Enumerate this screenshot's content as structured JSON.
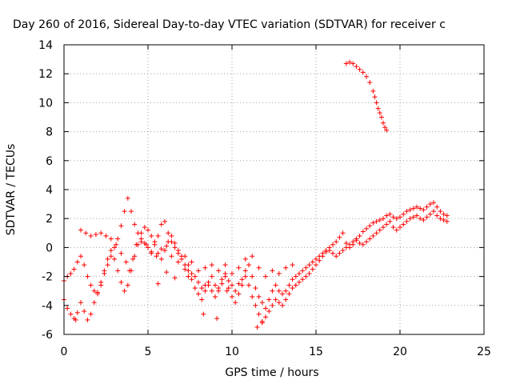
{
  "chart_data": {
    "type": "scatter",
    "title": "Day 260 of 2016, Sidereal Day-to-day VTEC variation (SDTVAR) for receiver c",
    "xlabel": "GPS time / hours",
    "ylabel": "SDTVAR / TECUs",
    "xlim": [
      0,
      25
    ],
    "ylim": [
      -6,
      14
    ],
    "xticks": [
      "0",
      "5",
      "10",
      "15",
      "20",
      "25"
    ],
    "yticks": [
      "-6",
      "-4",
      "-2",
      "0",
      "2",
      "4",
      "6",
      "8",
      "10",
      "12",
      "14"
    ],
    "grid": true,
    "marker": "+",
    "color": "#ff0000",
    "series": [
      {
        "points": [
          [
            0.0,
            -2.3
          ],
          [
            0.2,
            -2.0
          ],
          [
            0.4,
            -1.8
          ],
          [
            0.6,
            -1.5
          ],
          [
            0.8,
            -1.0
          ],
          [
            1.0,
            -0.6
          ],
          [
            1.2,
            -1.2
          ],
          [
            1.4,
            -2.0
          ],
          [
            1.6,
            -2.6
          ],
          [
            1.8,
            -3.0
          ],
          [
            2.0,
            -3.1
          ],
          [
            2.2,
            -2.6
          ],
          [
            2.4,
            -1.8
          ],
          [
            2.6,
            -1.2
          ],
          [
            2.8,
            -0.6
          ],
          [
            3.0,
            0.0
          ],
          [
            3.2,
            0.6
          ],
          [
            3.4,
            1.5
          ],
          [
            3.6,
            2.5
          ],
          [
            3.8,
            3.4
          ],
          [
            4.0,
            2.5
          ],
          [
            4.2,
            1.6
          ],
          [
            4.4,
            1.0
          ],
          [
            4.6,
            0.6
          ],
          [
            4.8,
            0.3
          ],
          [
            5.0,
            0.0
          ],
          [
            5.2,
            -0.3
          ],
          [
            5.4,
            0.2
          ],
          [
            5.6,
            0.8
          ],
          [
            5.8,
            1.6
          ],
          [
            6.0,
            1.8
          ],
          [
            6.2,
            1.0
          ],
          [
            6.4,
            0.4
          ],
          [
            6.6,
            0.0
          ],
          [
            6.8,
            -0.4
          ],
          [
            7.0,
            -0.8
          ],
          [
            7.2,
            -0.6
          ],
          [
            7.4,
            -1.2
          ],
          [
            7.6,
            -1.8
          ],
          [
            7.8,
            -2.0
          ],
          [
            8.0,
            -2.4
          ],
          [
            8.2,
            -2.8
          ],
          [
            8.4,
            -2.6
          ],
          [
            8.6,
            -2.4
          ],
          [
            8.8,
            -2.0
          ],
          [
            9.0,
            -2.6
          ],
          [
            9.2,
            -3.0
          ],
          [
            9.4,
            -2.5
          ],
          [
            9.6,
            -2.0
          ],
          [
            9.8,
            -2.3
          ],
          [
            10.0,
            -2.6
          ],
          [
            10.2,
            -3.0
          ],
          [
            10.4,
            -2.5
          ],
          [
            10.6,
            -2.2
          ],
          [
            10.8,
            -1.6
          ],
          [
            11.0,
            -1.2
          ],
          [
            11.2,
            -2.0
          ],
          [
            11.4,
            -2.8
          ],
          [
            11.6,
            -3.4
          ],
          [
            11.8,
            -3.8
          ],
          [
            12.0,
            -4.2
          ],
          [
            12.2,
            -3.6
          ],
          [
            12.4,
            -3.0
          ],
          [
            12.6,
            -2.6
          ],
          [
            12.8,
            -3.0
          ],
          [
            13.0,
            -3.2
          ],
          [
            13.2,
            -3.0
          ],
          [
            13.4,
            -2.6
          ],
          [
            13.6,
            -2.2
          ],
          [
            13.8,
            -2.0
          ],
          [
            14.0,
            -1.8
          ],
          [
            14.2,
            -1.6
          ],
          [
            14.4,
            -1.4
          ],
          [
            14.6,
            -1.2
          ],
          [
            14.8,
            -1.0
          ],
          [
            15.0,
            -0.8
          ],
          [
            15.2,
            -0.6
          ],
          [
            15.4,
            -0.4
          ],
          [
            15.6,
            -0.2
          ],
          [
            15.8,
            0.0
          ],
          [
            16.0,
            0.2
          ],
          [
            16.2,
            0.4
          ],
          [
            16.4,
            0.7
          ],
          [
            16.6,
            1.0
          ],
          [
            16.8,
            0.3
          ],
          [
            17.0,
            0.0
          ],
          [
            17.2,
            0.2
          ],
          [
            17.4,
            0.5
          ],
          [
            17.6,
            0.8
          ],
          [
            17.8,
            1.1
          ],
          [
            18.0,
            1.3
          ],
          [
            18.2,
            1.5
          ],
          [
            18.4,
            1.7
          ],
          [
            18.6,
            1.8
          ],
          [
            18.8,
            1.9
          ],
          [
            19.0,
            2.0
          ],
          [
            19.2,
            2.2
          ],
          [
            19.4,
            2.3
          ],
          [
            19.6,
            2.1
          ],
          [
            19.8,
            2.0
          ],
          [
            20.0,
            2.1
          ],
          [
            20.2,
            2.3
          ],
          [
            20.4,
            2.5
          ],
          [
            20.6,
            2.6
          ],
          [
            20.8,
            2.7
          ],
          [
            21.0,
            2.8
          ],
          [
            21.2,
            2.7
          ],
          [
            21.4,
            2.6
          ],
          [
            21.6,
            2.8
          ],
          [
            21.8,
            3.0
          ],
          [
            22.0,
            3.1
          ],
          [
            22.2,
            2.8
          ],
          [
            22.4,
            2.5
          ],
          [
            22.6,
            2.3
          ],
          [
            22.8,
            2.2
          ]
        ]
      },
      {
        "points": [
          [
            0.0,
            -3.6
          ],
          [
            0.2,
            -4.2
          ],
          [
            0.4,
            -4.6
          ],
          [
            0.6,
            -4.9
          ],
          [
            0.8,
            -4.5
          ],
          [
            1.0,
            -3.8
          ],
          [
            1.2,
            -4.4
          ],
          [
            1.4,
            -5.0
          ],
          [
            1.6,
            -4.6
          ],
          [
            1.8,
            -3.8
          ],
          [
            2.0,
            -3.2
          ],
          [
            2.2,
            -2.4
          ],
          [
            2.4,
            -1.6
          ],
          [
            2.6,
            -0.8
          ],
          [
            2.8,
            -0.2
          ],
          [
            3.0,
            -0.8
          ],
          [
            3.2,
            -1.6
          ],
          [
            3.4,
            -2.4
          ],
          [
            3.6,
            -3.0
          ],
          [
            3.8,
            -2.6
          ],
          [
            4.0,
            -1.6
          ],
          [
            4.2,
            -0.6
          ],
          [
            4.4,
            0.2
          ],
          [
            4.6,
            1.0
          ],
          [
            4.8,
            1.4
          ],
          [
            5.0,
            1.2
          ],
          [
            5.2,
            0.8
          ],
          [
            5.4,
            0.4
          ],
          [
            5.6,
            -0.4
          ],
          [
            5.8,
            -0.8
          ],
          [
            6.0,
            -0.2
          ],
          [
            6.2,
            0.4
          ],
          [
            6.4,
            0.8
          ],
          [
            6.6,
            0.3
          ],
          [
            6.8,
            -0.2
          ],
          [
            7.0,
            -0.6
          ],
          [
            7.2,
            -1.2
          ],
          [
            7.4,
            -1.6
          ],
          [
            7.6,
            -2.2
          ],
          [
            7.8,
            -2.8
          ],
          [
            8.0,
            -3.2
          ],
          [
            8.2,
            -3.6
          ],
          [
            8.4,
            -3.0
          ],
          [
            8.6,
            -2.6
          ],
          [
            8.8,
            -3.0
          ],
          [
            9.0,
            -3.4
          ],
          [
            9.2,
            -2.8
          ],
          [
            9.4,
            -2.2
          ],
          [
            9.6,
            -1.8
          ],
          [
            9.8,
            -2.8
          ],
          [
            10.0,
            -3.4
          ],
          [
            10.2,
            -3.8
          ],
          [
            10.4,
            -3.2
          ],
          [
            10.6,
            -2.6
          ],
          [
            10.8,
            -2.0
          ],
          [
            11.0,
            -2.6
          ],
          [
            11.2,
            -3.4
          ],
          [
            11.4,
            -4.0
          ],
          [
            11.6,
            -4.6
          ],
          [
            11.8,
            -5.2
          ],
          [
            12.0,
            -4.8
          ],
          [
            12.2,
            -4.4
          ],
          [
            12.4,
            -4.0
          ],
          [
            12.6,
            -3.6
          ],
          [
            12.8,
            -3.8
          ],
          [
            13.0,
            -4.0
          ],
          [
            13.2,
            -3.6
          ],
          [
            13.4,
            -3.2
          ],
          [
            13.6,
            -2.8
          ],
          [
            13.8,
            -2.6
          ],
          [
            14.0,
            -2.4
          ],
          [
            14.2,
            -2.2
          ],
          [
            14.4,
            -2.0
          ],
          [
            14.6,
            -1.8
          ],
          [
            14.8,
            -1.5
          ],
          [
            15.0,
            -1.2
          ],
          [
            15.2,
            -0.9
          ],
          [
            15.4,
            -0.6
          ],
          [
            15.6,
            -0.3
          ],
          [
            15.8,
            -0.2
          ],
          [
            16.0,
            -0.4
          ],
          [
            16.2,
            -0.6
          ],
          [
            16.4,
            -0.4
          ],
          [
            16.6,
            -0.2
          ],
          [
            16.8,
            0.0
          ],
          [
            17.0,
            0.2
          ],
          [
            17.2,
            0.4
          ],
          [
            17.4,
            0.6
          ],
          [
            17.6,
            0.3
          ],
          [
            17.8,
            0.2
          ],
          [
            18.0,
            0.4
          ],
          [
            18.2,
            0.6
          ],
          [
            18.4,
            0.8
          ],
          [
            18.6,
            1.0
          ],
          [
            18.8,
            1.2
          ],
          [
            19.0,
            1.4
          ],
          [
            19.2,
            1.6
          ],
          [
            19.4,
            1.8
          ],
          [
            19.6,
            1.4
          ],
          [
            19.8,
            1.2
          ],
          [
            20.0,
            1.4
          ],
          [
            20.2,
            1.6
          ],
          [
            20.4,
            1.8
          ],
          [
            20.6,
            2.0
          ],
          [
            20.8,
            2.1
          ],
          [
            21.0,
            2.2
          ],
          [
            21.2,
            2.0
          ],
          [
            21.4,
            1.9
          ],
          [
            21.6,
            2.1
          ],
          [
            21.8,
            2.3
          ],
          [
            22.0,
            2.5
          ],
          [
            22.2,
            2.2
          ],
          [
            22.4,
            2.0
          ],
          [
            22.6,
            1.9
          ],
          [
            22.8,
            1.8
          ]
        ]
      },
      {
        "points": [
          [
            16.8,
            12.7
          ],
          [
            17.0,
            12.8
          ],
          [
            17.2,
            12.7
          ],
          [
            17.4,
            12.5
          ],
          [
            17.6,
            12.3
          ],
          [
            17.8,
            12.1
          ],
          [
            18.0,
            11.8
          ],
          [
            18.2,
            11.4
          ],
          [
            18.4,
            10.8
          ],
          [
            18.5,
            10.4
          ],
          [
            18.6,
            10.0
          ],
          [
            18.7,
            9.6
          ],
          [
            18.8,
            9.3
          ],
          [
            18.9,
            9.0
          ],
          [
            19.0,
            8.6
          ],
          [
            19.1,
            8.3
          ],
          [
            19.2,
            8.1
          ]
        ]
      },
      {
        "points": [
          [
            1.0,
            1.2
          ],
          [
            1.3,
            1.0
          ],
          [
            1.6,
            0.8
          ],
          [
            1.9,
            0.9
          ],
          [
            2.2,
            1.0
          ],
          [
            2.5,
            0.8
          ],
          [
            2.8,
            0.6
          ],
          [
            3.1,
            0.2
          ],
          [
            3.4,
            -0.4
          ],
          [
            3.7,
            -1.0
          ],
          [
            3.9,
            -1.6
          ],
          [
            4.1,
            -0.8
          ],
          [
            4.3,
            0.2
          ],
          [
            4.6,
            0.4
          ],
          [
            4.9,
            0.2
          ],
          [
            5.2,
            -0.4
          ],
          [
            5.5,
            -0.6
          ],
          [
            5.8,
            -0.1
          ],
          [
            6.1,
            0.1
          ],
          [
            6.4,
            -0.6
          ],
          [
            6.8,
            -1.0
          ],
          [
            7.2,
            -1.5
          ],
          [
            7.6,
            -1.0
          ],
          [
            8.0,
            -1.6
          ],
          [
            8.4,
            -1.4
          ],
          [
            8.8,
            -1.2
          ],
          [
            9.2,
            -1.6
          ],
          [
            9.6,
            -1.2
          ],
          [
            10.0,
            -1.8
          ],
          [
            10.4,
            -1.4
          ],
          [
            10.8,
            -0.8
          ],
          [
            11.2,
            -0.6
          ],
          [
            11.6,
            -1.4
          ],
          [
            12.0,
            -2.0
          ],
          [
            12.4,
            -1.6
          ],
          [
            12.8,
            -1.8
          ],
          [
            13.2,
            -1.4
          ],
          [
            13.6,
            -1.2
          ]
        ]
      },
      {
        "points": [
          [
            5.6,
            -2.5
          ],
          [
            6.1,
            -1.7
          ],
          [
            7.4,
            -2.0
          ],
          [
            8.3,
            -4.6
          ],
          [
            9.1,
            -4.9
          ],
          [
            11.5,
            -5.5
          ],
          [
            11.8,
            -5.1
          ],
          [
            9.7,
            -3.0
          ],
          [
            6.6,
            -2.1
          ],
          [
            0.7,
            -5.0
          ]
        ]
      }
    ]
  }
}
